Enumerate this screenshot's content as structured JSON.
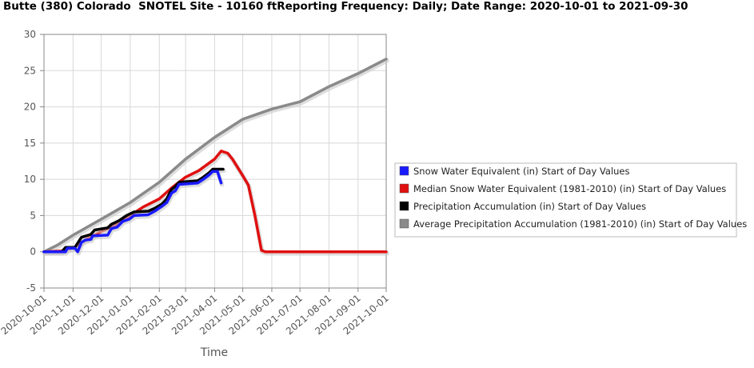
{
  "chart_data": {
    "type": "line",
    "title": "Butte (380) Colorado  SNOTEL Site - 10160 ftReporting Frequency: Daily; Date Range: 2020-10-01 to 2021-09-30",
    "xlabel": "Time",
    "ylabel": "",
    "ylim": [
      -5,
      30
    ],
    "yticks": [
      -5,
      0,
      5,
      10,
      15,
      20,
      25,
      30
    ],
    "xlim": [
      "2020-10-01",
      "2021-10-01"
    ],
    "xticks": [
      "2020-10-01",
      "2020-11-01",
      "2020-12-01",
      "2021-01-01",
      "2021-02-01",
      "2021-03-01",
      "2021-04-01",
      "2021-05-01",
      "2021-06-01",
      "2021-07-01",
      "2021-08-01",
      "2021-09-01",
      "2021-10-01"
    ],
    "grid": true,
    "legend_position": "right",
    "series": [
      {
        "name": "Snow Water Equivalent (in) Start of Day Values",
        "color": "#1a1aff",
        "points": [
          [
            "2020-10-01",
            0
          ],
          [
            "2020-10-24",
            0
          ],
          [
            "2020-10-26",
            0.5
          ],
          [
            "2020-11-03",
            0.5
          ],
          [
            "2020-11-06",
            0
          ],
          [
            "2020-11-10",
            1.3
          ],
          [
            "2020-11-14",
            1.6
          ],
          [
            "2020-11-20",
            1.7
          ],
          [
            "2020-11-22",
            2.2
          ],
          [
            "2020-12-08",
            2.3
          ],
          [
            "2020-12-12",
            3.2
          ],
          [
            "2020-12-18",
            3.4
          ],
          [
            "2020-12-24",
            4.2
          ],
          [
            "2020-12-31",
            4.5
          ],
          [
            "2021-01-05",
            5.0
          ],
          [
            "2021-01-20",
            5.1
          ],
          [
            "2021-01-27",
            5.6
          ],
          [
            "2021-02-04",
            6.3
          ],
          [
            "2021-02-09",
            6.8
          ],
          [
            "2021-02-14",
            8.1
          ],
          [
            "2021-02-18",
            8.4
          ],
          [
            "2021-02-22",
            9.3
          ],
          [
            "2021-03-14",
            9.5
          ],
          [
            "2021-03-20",
            10.0
          ],
          [
            "2021-03-26",
            10.6
          ],
          [
            "2021-03-30",
            11.1
          ],
          [
            "2021-04-04",
            11.1
          ],
          [
            "2021-04-08",
            9.5
          ]
        ]
      },
      {
        "name": "Median Snow Water Equivalent (1981-2010) (in) Start of Day Values",
        "color": "#e01010",
        "points": [
          [
            "2020-10-01",
            0
          ],
          [
            "2020-10-20",
            0.1
          ],
          [
            "2020-11-01",
            0.5
          ],
          [
            "2020-11-15",
            1.7
          ],
          [
            "2020-12-01",
            2.8
          ],
          [
            "2020-12-15",
            3.6
          ],
          [
            "2021-01-01",
            5.0
          ],
          [
            "2021-01-15",
            6.2
          ],
          [
            "2021-02-01",
            7.3
          ],
          [
            "2021-02-15",
            8.9
          ],
          [
            "2021-03-01",
            10.3
          ],
          [
            "2021-03-15",
            11.2
          ],
          [
            "2021-04-01",
            12.8
          ],
          [
            "2021-04-08",
            13.9
          ],
          [
            "2021-04-15",
            13.6
          ],
          [
            "2021-04-20",
            12.8
          ],
          [
            "2021-05-01",
            10.5
          ],
          [
            "2021-05-07",
            9.2
          ],
          [
            "2021-05-14",
            5.0
          ],
          [
            "2021-05-21",
            0.2
          ],
          [
            "2021-05-25",
            0
          ],
          [
            "2021-10-01",
            0
          ]
        ]
      },
      {
        "name": "Precipitation Accumulation (in) Start of Day Values",
        "color": "#000000",
        "points": [
          [
            "2020-10-01",
            0
          ],
          [
            "2020-10-20",
            0
          ],
          [
            "2020-10-24",
            0.6
          ],
          [
            "2020-11-03",
            0.6
          ],
          [
            "2020-11-06",
            1.2
          ],
          [
            "2020-11-10",
            2.0
          ],
          [
            "2020-11-20",
            2.4
          ],
          [
            "2020-11-24",
            3.0
          ],
          [
            "2020-12-08",
            3.3
          ],
          [
            "2020-12-12",
            3.8
          ],
          [
            "2020-12-20",
            4.3
          ],
          [
            "2020-12-28",
            5.0
          ],
          [
            "2021-01-05",
            5.5
          ],
          [
            "2021-01-20",
            5.6
          ],
          [
            "2021-01-27",
            6.0
          ],
          [
            "2021-02-04",
            6.6
          ],
          [
            "2021-02-09",
            7.3
          ],
          [
            "2021-02-14",
            8.6
          ],
          [
            "2021-02-18",
            9.0
          ],
          [
            "2021-02-22",
            9.6
          ],
          [
            "2021-03-14",
            9.8
          ],
          [
            "2021-03-20",
            10.3
          ],
          [
            "2021-03-26",
            10.9
          ],
          [
            "2021-03-30",
            11.4
          ],
          [
            "2021-04-10",
            11.4
          ]
        ]
      },
      {
        "name": "Average Precipitation Accumulation (1981-2010) (in) Start of Day Values",
        "color": "#8a8a8a",
        "points": [
          [
            "2020-10-01",
            0
          ],
          [
            "2020-10-15",
            0.9
          ],
          [
            "2020-11-01",
            2.3
          ],
          [
            "2020-12-01",
            4.5
          ],
          [
            "2021-01-01",
            6.8
          ],
          [
            "2021-02-01",
            9.6
          ],
          [
            "2021-03-01",
            12.8
          ],
          [
            "2021-04-01",
            15.8
          ],
          [
            "2021-05-01",
            18.3
          ],
          [
            "2021-06-01",
            19.7
          ],
          [
            "2021-07-01",
            20.7
          ],
          [
            "2021-08-01",
            22.8
          ],
          [
            "2021-09-01",
            24.6
          ],
          [
            "2021-10-01",
            26.6
          ]
        ]
      }
    ]
  }
}
